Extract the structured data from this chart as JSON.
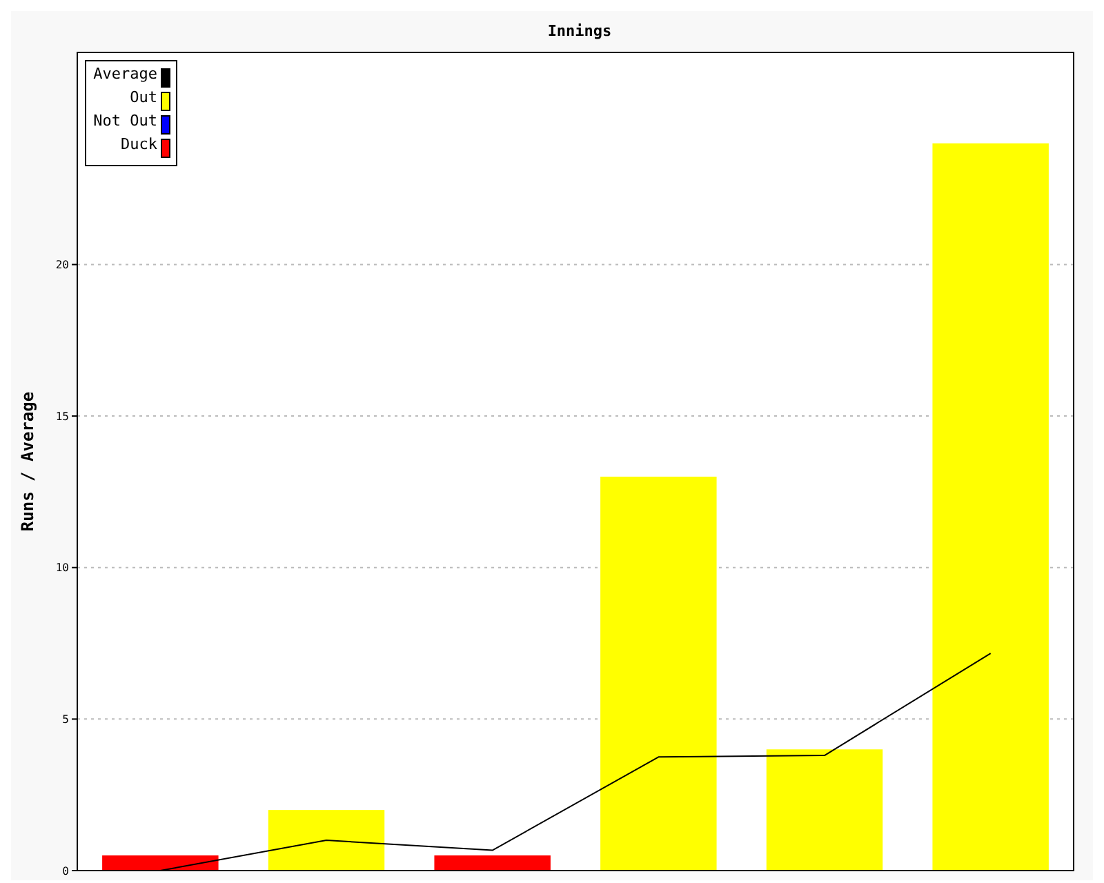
{
  "chart_data": {
    "type": "bar",
    "title": "Innings",
    "ylabel": "Runs / Average",
    "categories": [
      null,
      null,
      null,
      null,
      null,
      null
    ],
    "stacked": true,
    "series": [
      {
        "name": "Average",
        "type": "line",
        "color": "#000000",
        "values": [
          0,
          1,
          0.67,
          3.75,
          3.8,
          7.17
        ]
      },
      {
        "name": "Out",
        "color": "#ffff00",
        "values": [
          null,
          2,
          null,
          13,
          4,
          24
        ]
      },
      {
        "name": "Not Out",
        "color": "#0000ff",
        "values": [
          null,
          null,
          null,
          null,
          null,
          null
        ]
      },
      {
        "name": "Duck",
        "color": "#ff0000",
        "values": [
          0.5,
          null,
          0.5,
          null,
          null,
          null
        ]
      }
    ],
    "ylim": [
      0,
      27
    ],
    "yticks": [
      0,
      5,
      10,
      15,
      20
    ],
    "grid": "y",
    "legend": "top left",
    "marker": "none"
  }
}
